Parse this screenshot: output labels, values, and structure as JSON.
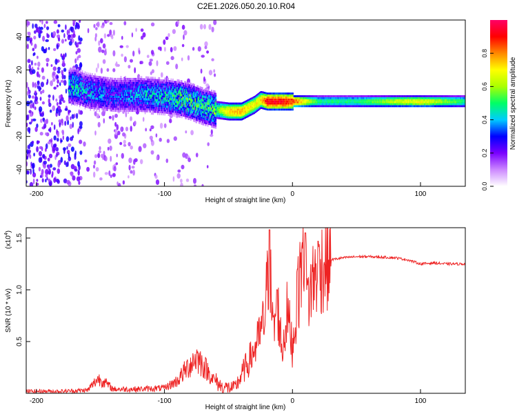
{
  "title": "C2E1.2026.050.20.10.R04",
  "chart_data": [
    {
      "type": "heatmap",
      "xlabel": "Height of straight line (km)",
      "ylabel": "Frequency (Hz)",
      "xlim": [
        -208,
        135
      ],
      "ylim": [
        -50,
        50
      ],
      "xticks": [
        -200,
        -100,
        0,
        100
      ],
      "yticks": [
        -40,
        -20,
        0,
        20,
        40
      ],
      "colorbar": {
        "label": "Normalized spectral amplitude",
        "range": [
          0.0,
          1.0
        ],
        "ticks": [
          "0.0",
          "0.2",
          "0.4",
          "0.6",
          "0.8"
        ],
        "colors": [
          "#ffffff",
          "#cc88ff",
          "#7a00ff",
          "#0000ff",
          "#00ccff",
          "#00ff66",
          "#aaff00",
          "#ffff00",
          "#ff8800",
          "#ff0000",
          "#ff0066"
        ]
      },
      "ridge": {
        "x": [
          -170,
          -160,
          -140,
          -120,
          -100,
          -90,
          -80,
          -70,
          -60,
          -50,
          -40,
          -35,
          -30,
          -25,
          -20,
          -10,
          0,
          20,
          50,
          80,
          100,
          135
        ],
        "freq": [
          10,
          7,
          5,
          5,
          4,
          3,
          1,
          -2,
          -4,
          -5,
          -5,
          -3,
          -1,
          2,
          1,
          1,
          1,
          1,
          1,
          1,
          1,
          1
        ],
        "amplitude": [
          0.45,
          0.4,
          0.35,
          0.4,
          0.45,
          0.5,
          0.55,
          0.5,
          0.55,
          0.75,
          0.8,
          0.75,
          0.7,
          0.75,
          0.95,
          0.95,
          0.9,
          0.5,
          0.5,
          0.65,
          0.7,
          0.5
        ]
      }
    },
    {
      "type": "line",
      "xlabel": "Height of straight line (km)",
      "ylabel": "SNR (10 * v/v)",
      "yscale_label": "(x10",
      "yscale_exp": "4",
      "yscale_close": ")",
      "xlim": [
        -208,
        135
      ],
      "ylim": [
        0,
        1.6
      ],
      "xticks": [
        -200,
        -100,
        0,
        100
      ],
      "yticks": [
        0.5,
        1.0,
        1.5
      ],
      "series": [
        {
          "color": "#ee2222",
          "x": [
            -208,
            -180,
            -160,
            -152,
            -148,
            -140,
            -120,
            -100,
            -90,
            -80,
            -75,
            -70,
            -62,
            -55,
            -45,
            -38,
            -32,
            -27,
            -22,
            -18,
            -15,
            -12,
            -8,
            -4,
            0,
            4,
            8,
            12,
            16,
            20,
            25,
            30,
            40,
            50,
            60,
            80,
            90,
            100,
            110,
            120,
            135
          ],
          "y": [
            0.02,
            0.02,
            0.03,
            0.14,
            0.12,
            0.04,
            0.04,
            0.05,
            0.12,
            0.28,
            0.35,
            0.28,
            0.14,
            0.06,
            0.05,
            0.22,
            0.36,
            0.5,
            0.7,
            1.3,
            0.55,
            0.9,
            0.4,
            0.8,
            0.45,
            0.9,
            1.4,
            0.9,
            1.1,
            1.2,
            1.25,
            1.29,
            1.31,
            1.32,
            1.32,
            1.31,
            1.29,
            1.25,
            1.26,
            1.25,
            1.25
          ],
          "spikes": [
            [
              -18,
              1.58
            ],
            [
              -12,
              1.0
            ],
            [
              10,
              1.55
            ],
            [
              20,
              1.47
            ],
            [
              4,
              1.2
            ]
          ]
        }
      ]
    }
  ]
}
